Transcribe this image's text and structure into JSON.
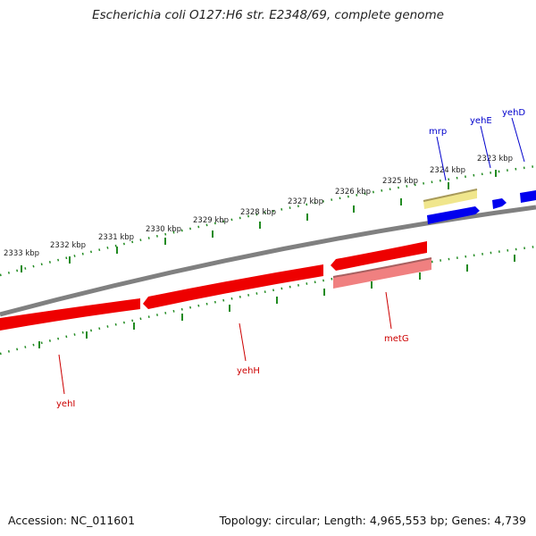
{
  "title": "Escherichia coli O127:H6 str. E2348/69, complete genome",
  "footer": {
    "accession": "Accession: NC_011601",
    "summary": "Topology: circular; Length: 4,965,553 bp; Genes: 4,739"
  },
  "colors": {
    "backbone": "#808080",
    "forward_gene": "#0000ee",
    "reverse_gene": "#ee0000",
    "reverse_gene_light": "#f08080",
    "forward_gene_pale": "#f0e68c",
    "tick": "#228b22",
    "forward_label": "#0000cc",
    "reverse_label": "#cc0000"
  },
  "scale_labels": [
    "2333 kbp",
    "2332 kbp",
    "2331 kbp",
    "2330 kbp",
    "2329 kbp",
    "2328 kbp",
    "2327 kbp",
    "2326 kbp",
    "2325 kbp",
    "2324 kbp",
    "2323 kbp"
  ],
  "forward_genes": [
    {
      "name": "mrp",
      "strand": "+"
    },
    {
      "name": "yehE",
      "strand": "+"
    },
    {
      "name": "yehD",
      "strand": "+"
    }
  ],
  "reverse_genes": [
    {
      "name": "metG",
      "strand": "-"
    },
    {
      "name": "yehH",
      "strand": "-"
    },
    {
      "name": "yehI",
      "strand": "-"
    }
  ]
}
